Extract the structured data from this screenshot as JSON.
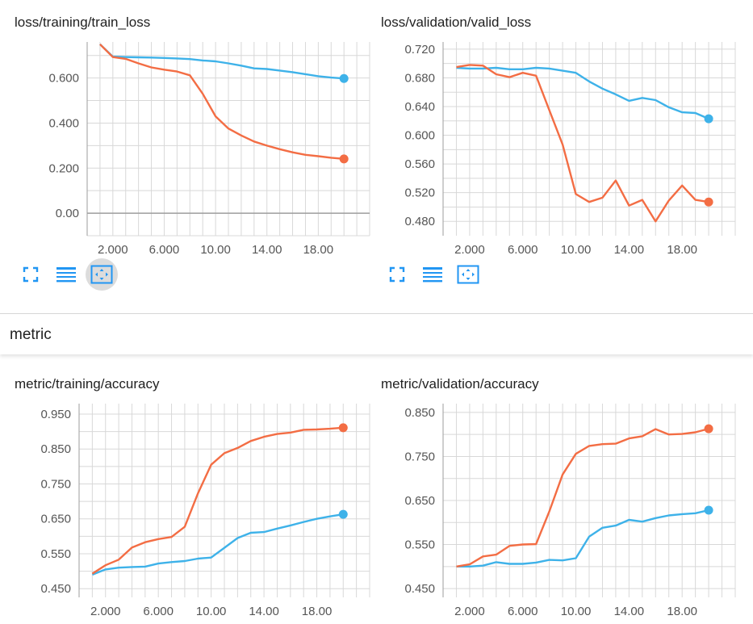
{
  "colors": {
    "blue": "#3eb2e9",
    "orange": "#f36d44",
    "grid": "#d8d8d8",
    "axis": "#9e9e9e",
    "icon": "#2196f3"
  },
  "section": {
    "title": "metric"
  },
  "toolbar_icons": [
    "fullscreen-icon",
    "list-icon",
    "fit-domain-icon"
  ],
  "chart_data": [
    {
      "id": "train_loss",
      "type": "line",
      "title": "loss/training/train_loss",
      "xlim": [
        0,
        22
      ],
      "ylim": [
        -0.1,
        0.76
      ],
      "xticks": [
        2,
        6,
        10,
        14,
        18
      ],
      "xtick_labels": [
        "2.000",
        "6.000",
        "10.00",
        "14.00",
        "18.00"
      ],
      "yticks": [
        0.0,
        0.2,
        0.4,
        0.6
      ],
      "ytick_labels": [
        "0.00",
        "0.200",
        "0.400",
        "0.600"
      ],
      "grid": true,
      "series": [
        {
          "color": "#3eb2e9",
          "x": [
            1,
            2,
            3,
            4,
            5,
            6,
            7,
            8,
            9,
            10,
            11,
            12,
            13,
            14,
            15,
            16,
            17,
            18,
            19,
            20
          ],
          "y": [
            0.75,
            0.695,
            0.693,
            0.692,
            0.691,
            0.689,
            0.687,
            0.684,
            0.678,
            0.674,
            0.665,
            0.655,
            0.643,
            0.64,
            0.633,
            0.626,
            0.617,
            0.608,
            0.602,
            0.598
          ]
        },
        {
          "color": "#f36d44",
          "x": [
            1,
            2,
            3,
            4,
            5,
            6,
            7,
            8,
            9,
            10,
            11,
            12,
            13,
            14,
            15,
            16,
            17,
            18,
            19,
            20
          ],
          "y": [
            0.75,
            0.693,
            0.685,
            0.665,
            0.647,
            0.637,
            0.629,
            0.612,
            0.53,
            0.43,
            0.376,
            0.345,
            0.318,
            0.3,
            0.284,
            0.27,
            0.259,
            0.253,
            0.246,
            0.241
          ]
        }
      ]
    },
    {
      "id": "valid_loss",
      "type": "line",
      "title": "loss/validation/valid_loss",
      "xlim": [
        0,
        22
      ],
      "ylim": [
        0.46,
        0.73
      ],
      "xticks": [
        2,
        6,
        10,
        14,
        18
      ],
      "xtick_labels": [
        "2.000",
        "6.000",
        "10.00",
        "14.00",
        "18.00"
      ],
      "yticks": [
        0.48,
        0.52,
        0.56,
        0.6,
        0.64,
        0.68,
        0.72
      ],
      "ytick_labels": [
        "0.480",
        "0.520",
        "0.560",
        "0.600",
        "0.640",
        "0.680",
        "0.720"
      ],
      "grid": true,
      "series": [
        {
          "color": "#3eb2e9",
          "x": [
            1,
            2,
            3,
            4,
            5,
            6,
            7,
            8,
            9,
            10,
            11,
            12,
            13,
            14,
            15,
            16,
            17,
            18,
            19,
            20
          ],
          "y": [
            0.694,
            0.693,
            0.693,
            0.694,
            0.692,
            0.692,
            0.694,
            0.693,
            0.69,
            0.687,
            0.675,
            0.665,
            0.657,
            0.648,
            0.652,
            0.649,
            0.639,
            0.632,
            0.631,
            0.623
          ]
        },
        {
          "color": "#f36d44",
          "x": [
            1,
            2,
            3,
            4,
            5,
            6,
            7,
            8,
            9,
            10,
            11,
            12,
            13,
            14,
            15,
            16,
            17,
            18,
            19,
            20
          ],
          "y": [
            0.695,
            0.698,
            0.697,
            0.685,
            0.681,
            0.687,
            0.683,
            0.635,
            0.587,
            0.518,
            0.507,
            0.513,
            0.537,
            0.502,
            0.51,
            0.48,
            0.509,
            0.53,
            0.51,
            0.507
          ]
        }
      ]
    },
    {
      "id": "train_accuracy",
      "type": "line",
      "title": "metric/training/accuracy",
      "xlim": [
        0,
        22
      ],
      "ylim": [
        0.425,
        0.98
      ],
      "xticks": [
        2,
        6,
        10,
        14,
        18
      ],
      "xtick_labels": [
        "2.000",
        "6.000",
        "10.00",
        "14.00",
        "18.00"
      ],
      "yticks": [
        0.45,
        0.55,
        0.65,
        0.75,
        0.85,
        0.95
      ],
      "ytick_labels": [
        "0.450",
        "0.550",
        "0.650",
        "0.750",
        "0.850",
        "0.950"
      ],
      "grid": true,
      "series": [
        {
          "color": "#3eb2e9",
          "x": [
            1,
            2,
            3,
            4,
            5,
            6,
            7,
            8,
            9,
            10,
            11,
            12,
            13,
            14,
            15,
            16,
            17,
            18,
            19,
            20
          ],
          "y": [
            0.49,
            0.505,
            0.51,
            0.512,
            0.513,
            0.522,
            0.526,
            0.529,
            0.536,
            0.539,
            0.567,
            0.595,
            0.61,
            0.612,
            0.622,
            0.631,
            0.641,
            0.65,
            0.657,
            0.663
          ]
        },
        {
          "color": "#f36d44",
          "x": [
            1,
            2,
            3,
            4,
            5,
            6,
            7,
            8,
            9,
            10,
            11,
            12,
            13,
            14,
            15,
            16,
            17,
            18,
            19,
            20
          ],
          "y": [
            0.493,
            0.517,
            0.533,
            0.568,
            0.583,
            0.592,
            0.598,
            0.627,
            0.723,
            0.805,
            0.838,
            0.853,
            0.873,
            0.885,
            0.893,
            0.897,
            0.905,
            0.906,
            0.908,
            0.911
          ]
        }
      ]
    },
    {
      "id": "valid_accuracy",
      "type": "line",
      "title": "metric/validation/accuracy",
      "xlim": [
        0,
        22
      ],
      "ylim": [
        0.43,
        0.87
      ],
      "xticks": [
        2,
        6,
        10,
        14,
        18
      ],
      "xtick_labels": [
        "2.000",
        "6.000",
        "10.00",
        "14.00",
        "18.00"
      ],
      "yticks": [
        0.45,
        0.55,
        0.65,
        0.75,
        0.85
      ],
      "ytick_labels": [
        "0.450",
        "0.550",
        "0.650",
        "0.750",
        "0.850"
      ],
      "grid": true,
      "series": [
        {
          "color": "#3eb2e9",
          "x": [
            1,
            2,
            3,
            4,
            5,
            6,
            7,
            8,
            9,
            10,
            11,
            12,
            13,
            14,
            15,
            16,
            17,
            18,
            19,
            20
          ],
          "y": [
            0.5,
            0.5,
            0.502,
            0.51,
            0.506,
            0.506,
            0.509,
            0.515,
            0.514,
            0.519,
            0.568,
            0.588,
            0.593,
            0.606,
            0.602,
            0.61,
            0.616,
            0.619,
            0.621,
            0.628
          ]
        },
        {
          "color": "#f36d44",
          "x": [
            1,
            2,
            3,
            4,
            5,
            6,
            7,
            8,
            9,
            10,
            11,
            12,
            13,
            14,
            15,
            16,
            17,
            18,
            19,
            20
          ],
          "y": [
            0.5,
            0.505,
            0.523,
            0.527,
            0.547,
            0.55,
            0.551,
            0.625,
            0.709,
            0.756,
            0.774,
            0.778,
            0.779,
            0.791,
            0.796,
            0.812,
            0.8,
            0.801,
            0.805,
            0.813
          ]
        }
      ]
    }
  ]
}
